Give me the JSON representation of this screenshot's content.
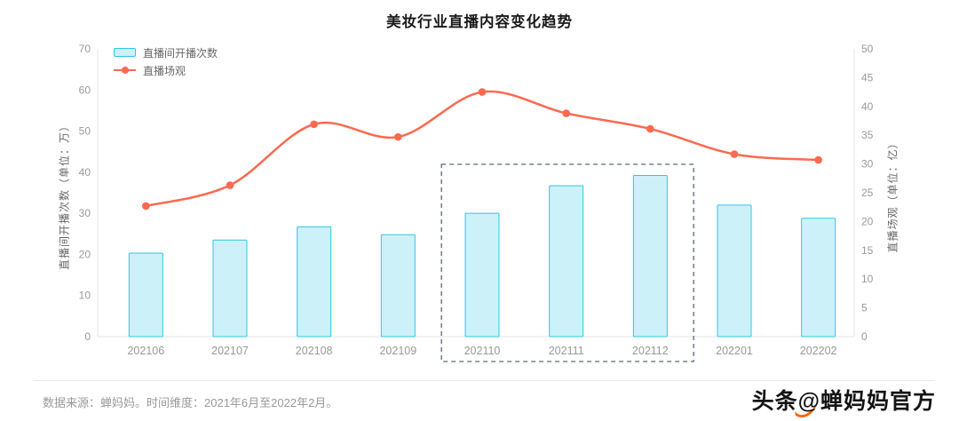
{
  "title": "美妆行业直播内容变化趋势",
  "legend": {
    "items": [
      {
        "label": "直播间开播次数",
        "marker": "bar-swatch"
      },
      {
        "label": "直播场观",
        "marker": "line-swatch"
      }
    ]
  },
  "chart_data": {
    "type": "bar+line",
    "title": "美妆行业直播内容变化趋势",
    "categories": [
      "202106",
      "202107",
      "202108",
      "202109",
      "202110",
      "202111",
      "202112",
      "202201",
      "202202"
    ],
    "series": [
      {
        "name": "直播间开播次数",
        "type": "bar",
        "y_axis": "left",
        "unit": "万",
        "values": [
          20.3,
          23.5,
          26.7,
          24.8,
          30.0,
          36.7,
          39.2,
          32.0,
          28.8
        ]
      },
      {
        "name": "直播场观",
        "type": "line",
        "y_axis": "right",
        "unit": "亿",
        "values": [
          22.7,
          26.3,
          36.9,
          34.7,
          42.5,
          38.8,
          36.1,
          31.7,
          30.7
        ]
      }
    ],
    "left_axis": {
      "title": "直播间开播次数（单位：万）",
      "min": 0,
      "max": 70,
      "step": 10
    },
    "right_axis": {
      "title": "直播场观（单位：亿）",
      "min": 0,
      "max": 50,
      "step": 5
    },
    "highlight_region": {
      "categories": [
        "202110",
        "202111",
        "202112"
      ],
      "style": "dashed-outline"
    },
    "grid": false,
    "legend_position": "top-left"
  },
  "colors": {
    "bar_fill": "#CDF1F9",
    "bar_border": "#2EC7E6",
    "line": "#FA6A50",
    "highlight_border": "#566B80",
    "axis_text": "#999999",
    "axis_title_text": "#666666",
    "axis_line": "#E6E6E6",
    "watermark_logo": "#FF6600"
  },
  "footer": {
    "note": "数据来源：蝉妈妈。时间维度：2021年6月至2022年2月。"
  },
  "watermark": {
    "prefix": "头条",
    "at": "@",
    "suffix": "蝉妈妈官方"
  }
}
